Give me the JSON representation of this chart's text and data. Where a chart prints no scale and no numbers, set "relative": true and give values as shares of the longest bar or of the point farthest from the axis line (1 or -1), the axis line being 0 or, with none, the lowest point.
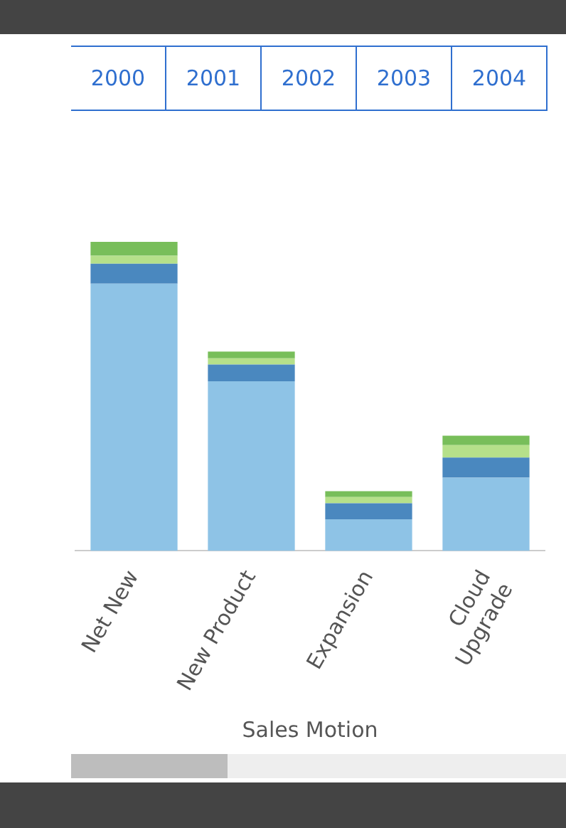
{
  "chart_data": {
    "type": "bar",
    "xlabel": "Sales Motion",
    "categories": [
      "Net New",
      "New Product",
      "Expansion",
      "Cloud Upgrade"
    ],
    "stacked": true,
    "relative": true,
    "legend": false,
    "series": [
      {
        "color": "#8ec3e6",
        "values": [
          0.865,
          0.549,
          0.102,
          0.237
        ]
      },
      {
        "color": "#4a88bf",
        "values": [
          0.064,
          0.054,
          0.052,
          0.065
        ]
      },
      {
        "color": "#b5e08a",
        "values": [
          0.026,
          0.02,
          0.02,
          0.04
        ]
      },
      {
        "color": "#78be5a",
        "values": [
          0.045,
          0.022,
          0.019,
          0.031
        ]
      }
    ],
    "annotations": [
      "2000",
      "2001",
      "2002",
      "2003",
      "2004"
    ]
  }
}
